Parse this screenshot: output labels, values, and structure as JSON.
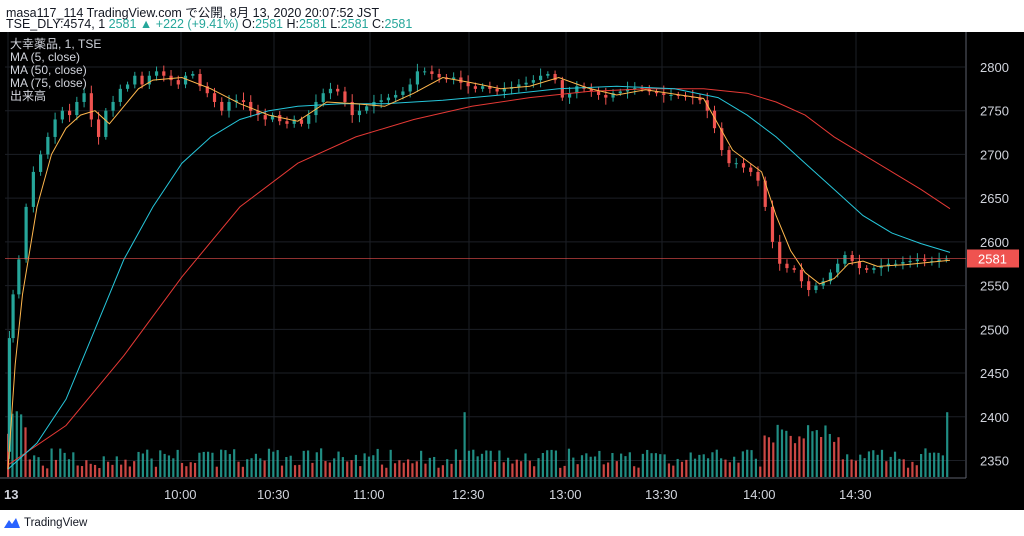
{
  "header": {
    "publish_line": "masa117_114 TradingView.com で公開, 8月 13, 2020 20:07:52 JST",
    "symbol": "TSE_DLY:4574, 1",
    "last_value": "2581",
    "change_arrow": "▲",
    "change": "+222 (+9.41%)",
    "o_label": "O:",
    "o_value": "2581",
    "h_label": "H:",
    "h_value": "2581",
    "l_label": "L:",
    "l_value": "2581",
    "c_label": "C:",
    "c_value": "2581"
  },
  "legend": {
    "title": "大幸薬品, 1, TSE",
    "ma5": "MA (5, close)",
    "ma50": "MA (50, close)",
    "ma75": "MA (75, close)",
    "volume": "出来高"
  },
  "footer": {
    "brand": "TradingView",
    "brand_icon": "tradingview-logo-icon"
  },
  "colors": {
    "up": "#26a69a",
    "down": "#ef5350",
    "ma5": "#ffb74d",
    "ma50": "#26c6da",
    "ma75": "#e53935",
    "price_line": "#ef5350"
  },
  "chart_data": {
    "type": "candlestick",
    "x_ticks": [
      "13",
      "10:00",
      "10:30",
      "11:00",
      "12:30",
      "13:00",
      "13:30",
      "14:00",
      "14:30"
    ],
    "y_ticks": [
      2350,
      2400,
      2450,
      2500,
      2550,
      2600,
      2650,
      2700,
      2750,
      2800
    ],
    "ylim": [
      2330,
      2840
    ],
    "last_price_label": "2581",
    "price_path": [
      [
        0,
        2360
      ],
      [
        2,
        2490
      ],
      [
        5,
        2540
      ],
      [
        10,
        2580
      ],
      [
        15,
        2640
      ],
      [
        20,
        2680
      ],
      [
        25,
        2700
      ],
      [
        30,
        2720
      ],
      [
        35,
        2740
      ],
      [
        40,
        2750
      ],
      [
        45,
        2745
      ],
      [
        50,
        2760
      ],
      [
        55,
        2770
      ],
      [
        60,
        2740
      ],
      [
        65,
        2720
      ],
      [
        70,
        2750
      ],
      [
        75,
        2760
      ],
      [
        80,
        2775
      ],
      [
        85,
        2780
      ],
      [
        90,
        2790
      ],
      [
        95,
        2780
      ],
      [
        100,
        2790
      ],
      [
        105,
        2795
      ],
      [
        110,
        2790
      ],
      [
        115,
        2785
      ],
      [
        120,
        2780
      ],
      [
        125,
        2790
      ],
      [
        130,
        2792
      ],
      [
        135,
        2778
      ],
      [
        140,
        2770
      ],
      [
        145,
        2760
      ],
      [
        150,
        2750
      ],
      [
        155,
        2760
      ],
      [
        160,
        2762
      ],
      [
        165,
        2760
      ],
      [
        170,
        2750
      ],
      [
        175,
        2745
      ],
      [
        180,
        2740
      ],
      [
        185,
        2745
      ],
      [
        190,
        2738
      ],
      [
        195,
        2735
      ],
      [
        200,
        2740
      ],
      [
        205,
        2735
      ],
      [
        210,
        2745
      ],
      [
        215,
        2760
      ],
      [
        220,
        2770
      ],
      [
        225,
        2775
      ],
      [
        230,
        2772
      ],
      [
        235,
        2760
      ],
      [
        240,
        2745
      ],
      [
        245,
        2750
      ],
      [
        250,
        2755
      ],
      [
        255,
        2760
      ],
      [
        260,
        2762
      ],
      [
        265,
        2765
      ],
      [
        270,
        2768
      ],
      [
        275,
        2772
      ],
      [
        280,
        2780
      ],
      [
        285,
        2795
      ],
      [
        290,
        2795
      ],
      [
        295,
        2792
      ],
      [
        300,
        2788
      ],
      [
        305,
        2786
      ],
      [
        310,
        2788
      ],
      [
        315,
        2782
      ],
      [
        320,
        2778
      ],
      [
        325,
        2775
      ],
      [
        330,
        2778
      ],
      [
        335,
        2775
      ],
      [
        340,
        2772
      ],
      [
        345,
        2775
      ],
      [
        350,
        2777
      ],
      [
        355,
        2780
      ],
      [
        360,
        2782
      ],
      [
        365,
        2785
      ],
      [
        370,
        2790
      ],
      [
        375,
        2792
      ],
      [
        380,
        2785
      ],
      [
        385,
        2765
      ],
      [
        390,
        2770
      ],
      [
        395,
        2778
      ],
      [
        400,
        2775
      ],
      [
        405,
        2772
      ],
      [
        410,
        2768
      ],
      [
        415,
        2765
      ],
      [
        420,
        2770
      ],
      [
        425,
        2772
      ],
      [
        430,
        2775
      ],
      [
        435,
        2776
      ],
      [
        440,
        2775
      ],
      [
        445,
        2772
      ],
      [
        450,
        2770
      ],
      [
        455,
        2768
      ],
      [
        460,
        2768
      ],
      [
        465,
        2767
      ],
      [
        470,
        2766
      ],
      [
        475,
        2765
      ],
      [
        480,
        2762
      ],
      [
        485,
        2750
      ],
      [
        490,
        2730
      ],
      [
        495,
        2705
      ],
      [
        500,
        2690
      ],
      [
        505,
        2690
      ],
      [
        510,
        2685
      ],
      [
        515,
        2680
      ],
      [
        520,
        2670
      ],
      [
        525,
        2640
      ],
      [
        530,
        2600
      ],
      [
        535,
        2575
      ],
      [
        540,
        2570
      ],
      [
        545,
        2568
      ],
      [
        550,
        2555
      ],
      [
        555,
        2545
      ],
      [
        560,
        2550
      ],
      [
        565,
        2555
      ],
      [
        570,
        2565
      ],
      [
        575,
        2575
      ],
      [
        580,
        2585
      ],
      [
        585,
        2578
      ],
      [
        590,
        2570
      ],
      [
        595,
        2568
      ],
      [
        600,
        2570
      ],
      [
        605,
        2572
      ],
      [
        610,
        2575
      ],
      [
        615,
        2575
      ],
      [
        620,
        2577
      ],
      [
        625,
        2578
      ],
      [
        630,
        2580
      ],
      [
        635,
        2578
      ],
      [
        640,
        2578
      ],
      [
        645,
        2580
      ],
      [
        650,
        2581
      ]
    ],
    "ma5": [
      [
        0,
        2340
      ],
      [
        5,
        2460
      ],
      [
        10,
        2540
      ],
      [
        20,
        2640
      ],
      [
        30,
        2700
      ],
      [
        40,
        2730
      ],
      [
        50,
        2745
      ],
      [
        60,
        2750
      ],
      [
        70,
        2735
      ],
      [
        80,
        2755
      ],
      [
        90,
        2775
      ],
      [
        100,
        2785
      ],
      [
        120,
        2788
      ],
      [
        140,
        2775
      ],
      [
        160,
        2758
      ],
      [
        180,
        2745
      ],
      [
        200,
        2738
      ],
      [
        220,
        2760
      ],
      [
        240,
        2758
      ],
      [
        260,
        2755
      ],
      [
        280,
        2770
      ],
      [
        300,
        2788
      ],
      [
        320,
        2782
      ],
      [
        340,
        2775
      ],
      [
        360,
        2778
      ],
      [
        380,
        2788
      ],
      [
        400,
        2776
      ],
      [
        420,
        2768
      ],
      [
        440,
        2774
      ],
      [
        460,
        2769
      ],
      [
        480,
        2764
      ],
      [
        500,
        2705
      ],
      [
        520,
        2680
      ],
      [
        530,
        2630
      ],
      [
        540,
        2590
      ],
      [
        550,
        2565
      ],
      [
        560,
        2552
      ],
      [
        570,
        2558
      ],
      [
        580,
        2575
      ],
      [
        590,
        2578
      ],
      [
        600,
        2572
      ],
      [
        620,
        2574
      ],
      [
        650,
        2579
      ]
    ],
    "ma50": [
      [
        0,
        2340
      ],
      [
        20,
        2370
      ],
      [
        40,
        2420
      ],
      [
        60,
        2500
      ],
      [
        80,
        2580
      ],
      [
        100,
        2640
      ],
      [
        120,
        2690
      ],
      [
        140,
        2720
      ],
      [
        160,
        2740
      ],
      [
        180,
        2750
      ],
      [
        200,
        2755
      ],
      [
        230,
        2758
      ],
      [
        260,
        2758
      ],
      [
        300,
        2762
      ],
      [
        340,
        2768
      ],
      [
        380,
        2775
      ],
      [
        420,
        2778
      ],
      [
        460,
        2775
      ],
      [
        490,
        2765
      ],
      [
        510,
        2745
      ],
      [
        530,
        2720
      ],
      [
        550,
        2690
      ],
      [
        570,
        2660
      ],
      [
        590,
        2630
      ],
      [
        610,
        2610
      ],
      [
        630,
        2598
      ],
      [
        650,
        2588
      ]
    ],
    "ma75": [
      [
        0,
        2345
      ],
      [
        40,
        2390
      ],
      [
        80,
        2470
      ],
      [
        120,
        2560
      ],
      [
        160,
        2640
      ],
      [
        200,
        2690
      ],
      [
        240,
        2720
      ],
      [
        280,
        2740
      ],
      [
        320,
        2755
      ],
      [
        360,
        2765
      ],
      [
        400,
        2772
      ],
      [
        440,
        2775
      ],
      [
        480,
        2775
      ],
      [
        510,
        2770
      ],
      [
        530,
        2760
      ],
      [
        550,
        2745
      ],
      [
        570,
        2720
      ],
      [
        590,
        2700
      ],
      [
        610,
        2680
      ],
      [
        630,
        2660
      ],
      [
        650,
        2638
      ]
    ]
  }
}
